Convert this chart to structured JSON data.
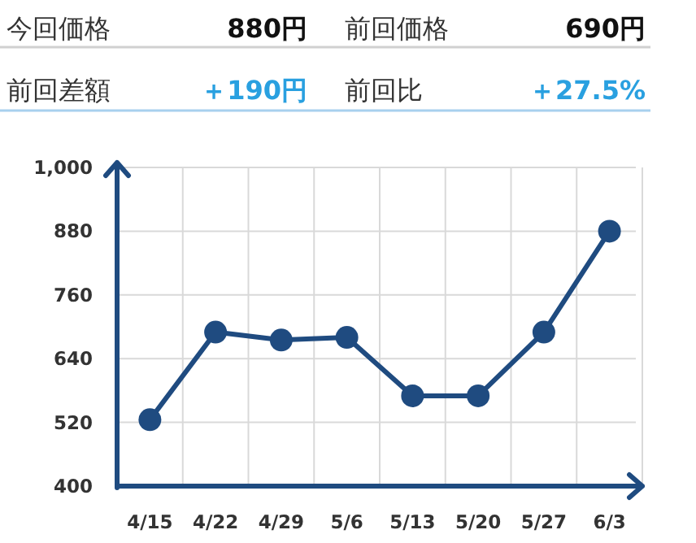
{
  "chart_data": {
    "type": "line",
    "annotations": [
      "今回価格",
      "880円",
      "前回価格",
      "690円",
      "前回差額",
      "＋190円",
      "前回比",
      "＋27.5%"
    ],
    "categories": [
      "4/15",
      "4/22",
      "4/29",
      "5/6",
      "5/13",
      "5/20",
      "5/27",
      "6/3"
    ],
    "series": [
      {
        "color": "#1f4b80",
        "values": [
          525,
          690,
          675,
          680,
          570,
          570,
          690,
          880
        ]
      }
    ],
    "ylim": [
      400,
      1000
    ],
    "yticks": [
      400,
      520,
      640,
      760,
      880,
      {
        "value": 1000,
        "label": "1,000"
      }
    ],
    "grid": true,
    "marker": "circle",
    "line_style": "solid"
  }
}
